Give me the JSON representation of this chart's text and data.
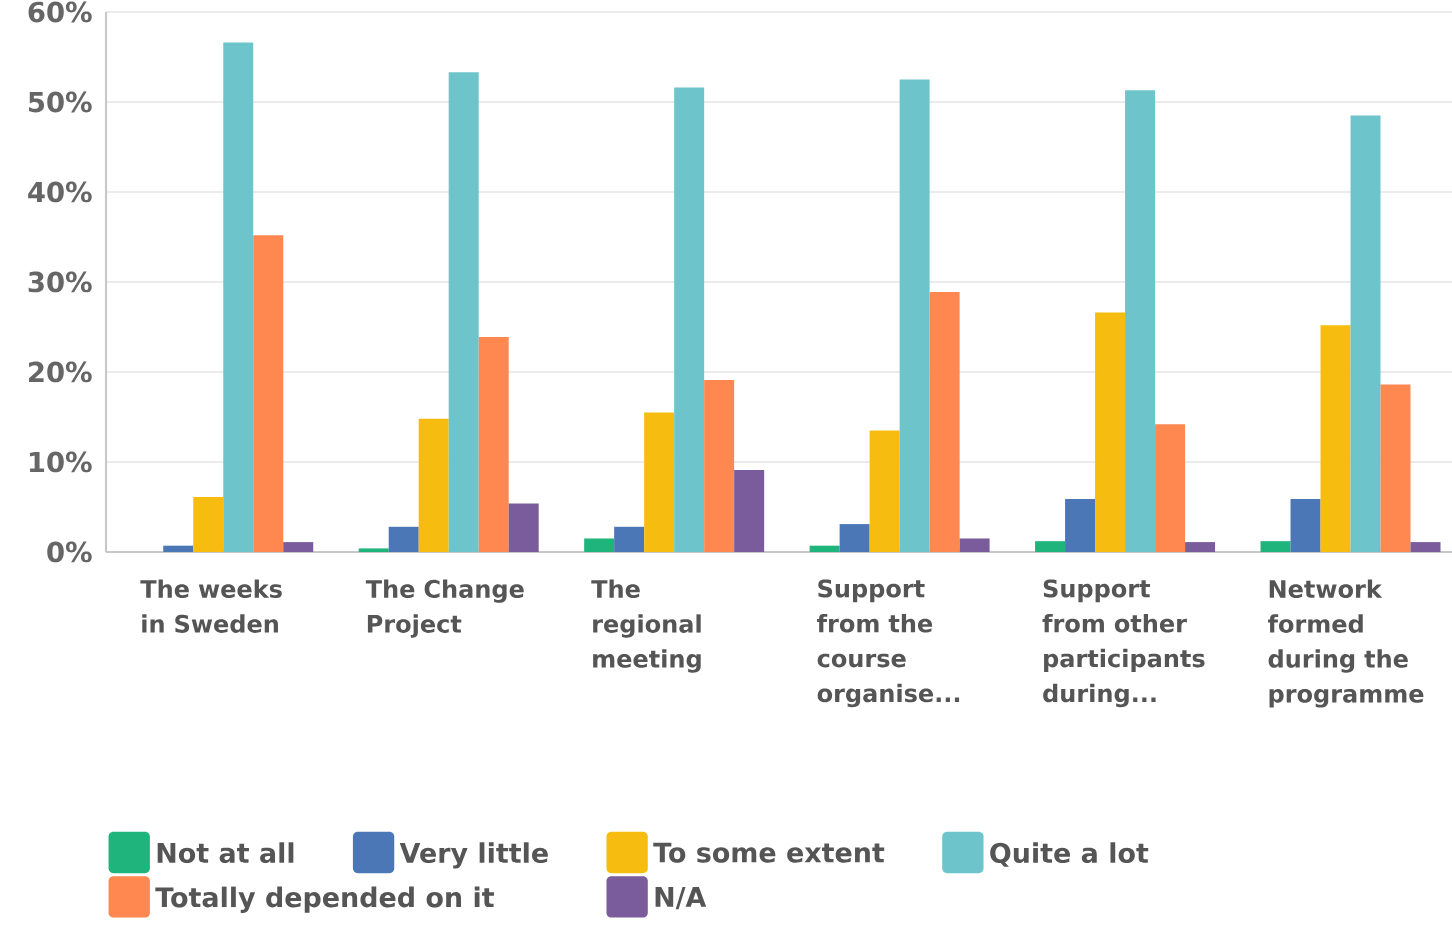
{
  "chart_data": {
    "type": "bar",
    "categories": [
      "The weeks in Sweden",
      "The Change Project",
      "The regional meeting",
      "Support from the course organise...",
      "Support from other participants during...",
      "Network formed during the programme"
    ],
    "series": [
      {
        "name": "Not at all",
        "color": "#1fb47c",
        "values": [
          0,
          0.4,
          1.5,
          0.7,
          1.2,
          1.2
        ]
      },
      {
        "name": "Very little",
        "color": "#4b77b6",
        "values": [
          0.7,
          2.8,
          2.8,
          3.1,
          5.9,
          5.9
        ]
      },
      {
        "name": "To some extent",
        "color": "#f7bc10",
        "values": [
          6.1,
          14.8,
          15.5,
          13.5,
          26.6,
          25.2
        ]
      },
      {
        "name": "Quite a lot",
        "color": "#6dc5cb",
        "values": [
          56.6,
          53.3,
          51.6,
          52.5,
          51.3,
          48.5
        ]
      },
      {
        "name": "Totally depended on it",
        "color": "#fe8850",
        "values": [
          35.2,
          23.9,
          19.1,
          28.9,
          14.2,
          18.6
        ]
      },
      {
        "name": "N/A",
        "color": "#7a5c9c",
        "values": [
          1.1,
          5.4,
          9.1,
          1.5,
          1.1,
          1.1
        ]
      }
    ],
    "ylim": [
      0,
      60
    ],
    "yticks": [
      {
        "value": 0,
        "label": "0%"
      },
      {
        "value": 10,
        "label": "10%"
      },
      {
        "value": 20,
        "label": "20%"
      },
      {
        "value": 30,
        "label": "30%"
      },
      {
        "value": 40,
        "label": "40%"
      },
      {
        "value": 50,
        "label": "50%"
      },
      {
        "value": 60,
        "label": "60%"
      }
    ],
    "grid": "y",
    "legend": "bottom"
  }
}
